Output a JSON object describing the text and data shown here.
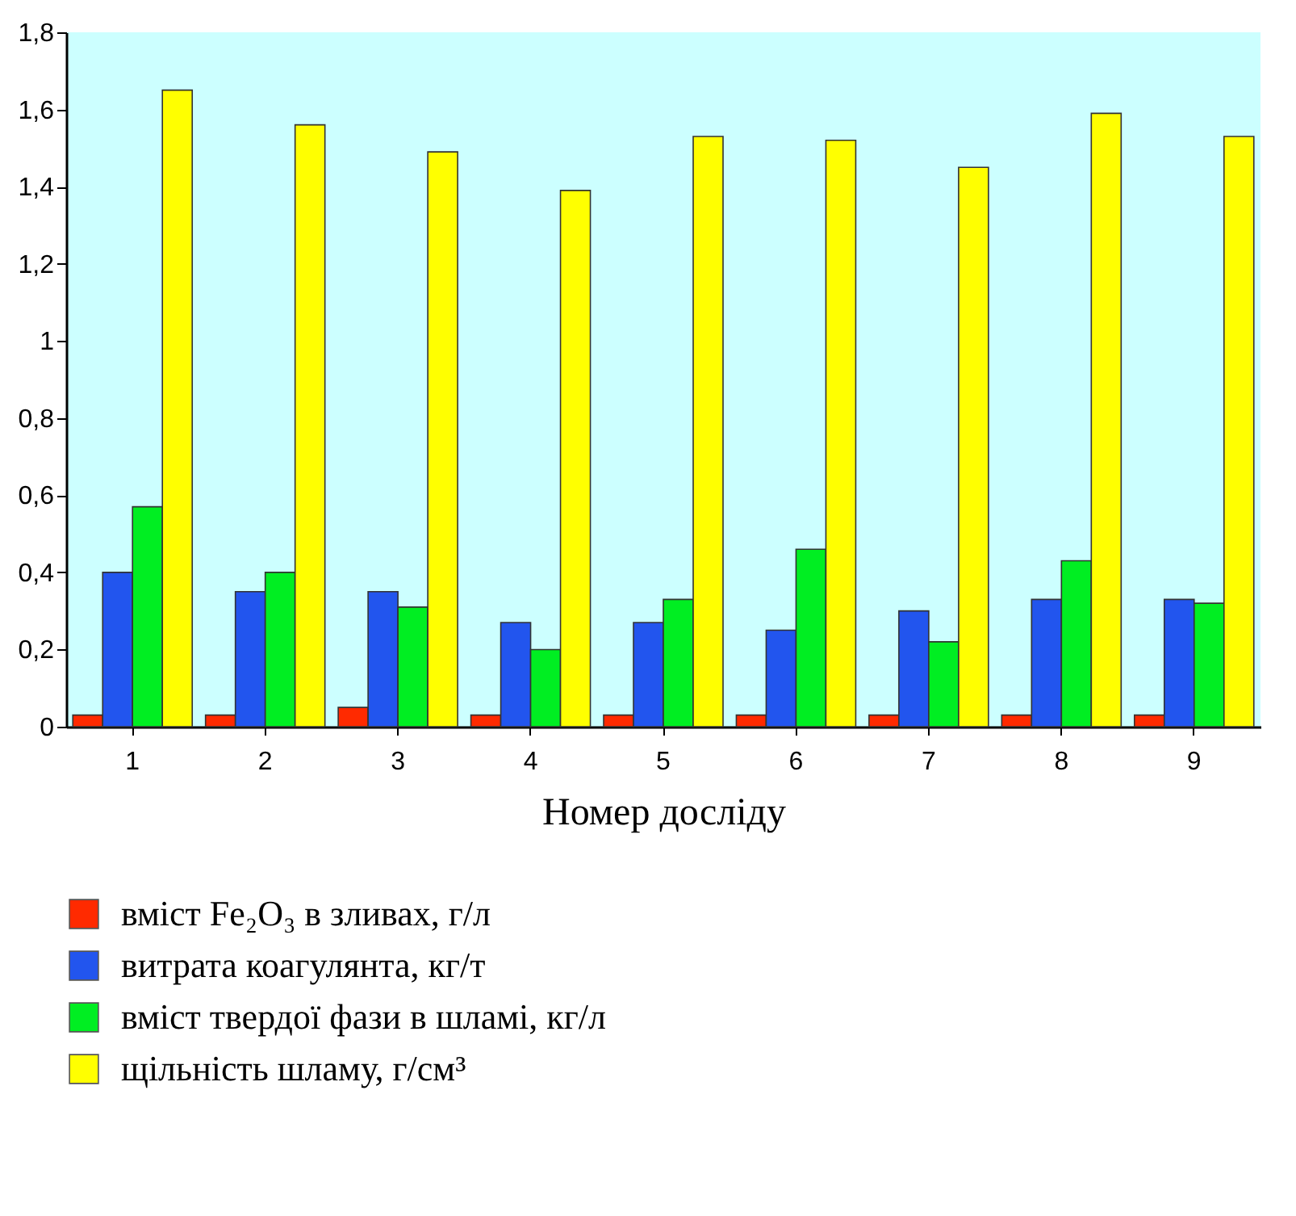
{
  "chart_data": {
    "type": "bar",
    "xlabel": "Номер досліду",
    "categories": [
      "1",
      "2",
      "3",
      "4",
      "5",
      "6",
      "7",
      "8",
      "9"
    ],
    "series": [
      {
        "name": "вміст Fe₂O₃ в зливах, г/л",
        "color": "#ff2a00",
        "values": [
          0.03,
          0.03,
          0.05,
          0.03,
          0.03,
          0.03,
          0.03,
          0.03,
          0.03
        ]
      },
      {
        "name": "витрата коагулянта, кг/т",
        "color": "#2255ee",
        "values": [
          0.4,
          0.35,
          0.35,
          0.27,
          0.27,
          0.25,
          0.3,
          0.33,
          0.33
        ]
      },
      {
        "name": "вміст твердої фази в шламі, кг/л",
        "color": "#00ee22",
        "values": [
          0.57,
          0.4,
          0.31,
          0.2,
          0.33,
          0.46,
          0.22,
          0.43,
          0.32
        ]
      },
      {
        "name": "щільність шламу, г/см³",
        "color": "#ffff00",
        "values": [
          1.65,
          1.56,
          1.49,
          1.39,
          1.53,
          1.52,
          1.45,
          1.59,
          1.53
        ]
      }
    ],
    "ylim": [
      0,
      1.8
    ],
    "yticks": [
      0,
      {
        "value": 0.2,
        "label": "0,2"
      },
      {
        "value": 0.4,
        "label": "0,4"
      },
      {
        "value": 0.6,
        "label": "0,6"
      },
      {
        "value": 0.8,
        "label": "0,8"
      },
      1,
      {
        "value": 1.2,
        "label": "1,2"
      },
      {
        "value": 1.4,
        "label": "1,4"
      },
      {
        "value": 1.6,
        "label": "1,6"
      },
      {
        "value": 1.8,
        "label": "1,8"
      }
    ],
    "grid": false,
    "legend": "bottom"
  }
}
